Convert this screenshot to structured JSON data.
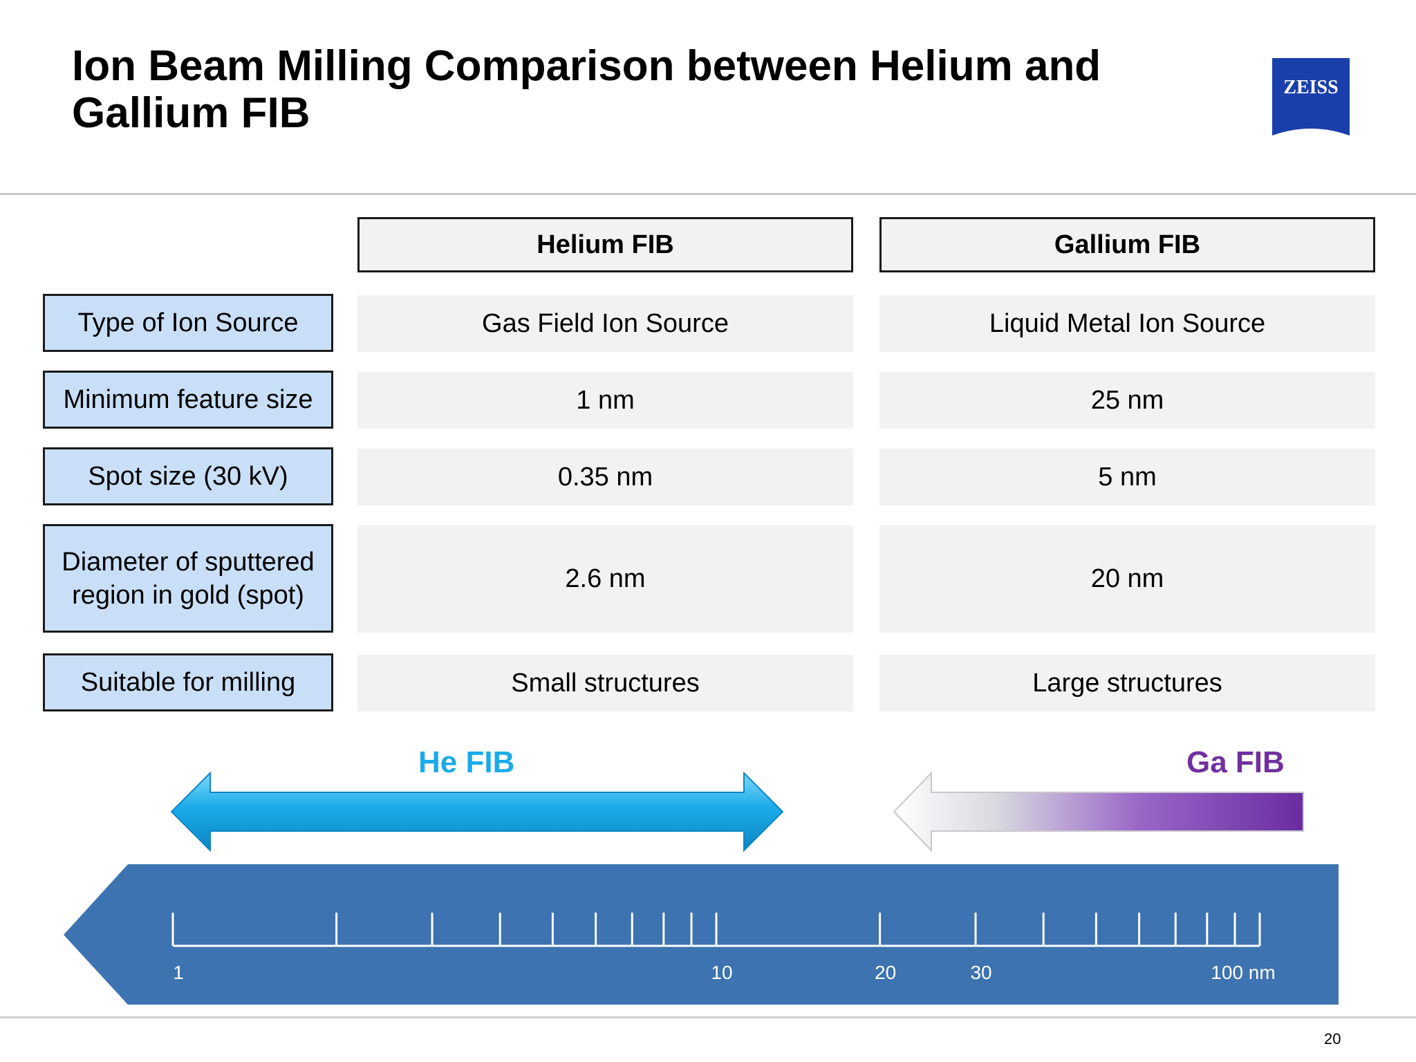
{
  "slide": {
    "title": "Ion Beam Milling Comparison between Helium and Gallium FIB",
    "page_number": "20"
  },
  "logo": {
    "text": "ZEISS",
    "color": "#1a3faa"
  },
  "table": {
    "columns": [
      "Helium FIB",
      "Gallium FIB"
    ],
    "rows": [
      {
        "label": "Type of Ion Source",
        "helium": "Gas Field Ion Source",
        "gallium": "Liquid Metal Ion Source"
      },
      {
        "label": "Minimum feature size",
        "helium": "1 nm",
        "gallium": "25 nm"
      },
      {
        "label": "Spot size (30 kV)",
        "helium": "0.35 nm",
        "gallium": "5 nm"
      },
      {
        "label": "Diameter of sputtered region in gold (spot)",
        "helium": "2.6 nm",
        "gallium": "20 nm"
      },
      {
        "label": "Suitable for milling",
        "helium": "Small structures",
        "gallium": "Large structures"
      }
    ]
  },
  "range_arrows": {
    "he": {
      "label": "He FIB",
      "color": "#1aabe8"
    },
    "ga": {
      "label": "Ga FIB",
      "color": "#7030a0"
    }
  },
  "scale": {
    "type": "log",
    "tick_labels": [
      "1",
      "10",
      "20",
      "30",
      "100 nm"
    ],
    "color": "#3c73b0"
  }
}
